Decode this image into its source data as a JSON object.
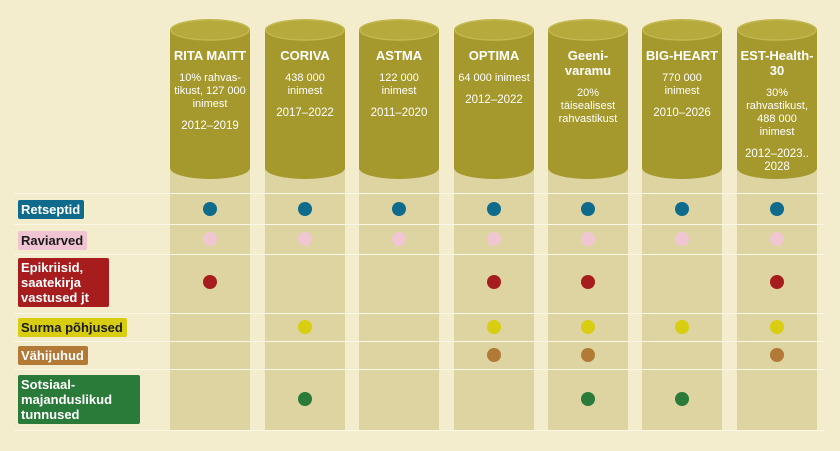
{
  "colors": {
    "background": "#f3eccd",
    "column_band": "#ddd4a2",
    "cylinder": "#a5982c",
    "cylinder_top": "#b7aa3c"
  },
  "databases": [
    {
      "name": "RITA MAITT",
      "population": "10% rahvas-tikust, 127 000 inimest",
      "years": "2012–2019"
    },
    {
      "name": "CORIVA",
      "population": "438 000 inimest",
      "years": "2017–2022"
    },
    {
      "name": "ASTMA",
      "population": "122 000 inimest",
      "years": "2011–2020"
    },
    {
      "name": "OPTIMA",
      "population": "64 000 inimest",
      "years": "2012–2022"
    },
    {
      "name": "Geeni-varamu",
      "population": "20% täisealisest rahvastikust",
      "years": ""
    },
    {
      "name": "BIG-HEART",
      "population": "770 000 inimest",
      "years": "2010–2026"
    },
    {
      "name": "EST-Health-30",
      "population": "30% rahvastikust, 488 000 inimest",
      "years": "2012–2023.. 2028"
    }
  ],
  "data_types": [
    {
      "label": "Retseptid",
      "bg": "#0f6b8c",
      "fg": "#ffffff",
      "dot": "#0f6b8c",
      "present": [
        1,
        1,
        1,
        1,
        1,
        1,
        1
      ]
    },
    {
      "label": "Raviarved",
      "bg": "#f0c4d2",
      "fg": "#1a1a1a",
      "dot": "#f1c6d3",
      "present": [
        1,
        1,
        1,
        1,
        1,
        1,
        1
      ]
    },
    {
      "label": "Epikriisid, saatekirja vastused jt",
      "bg": "#a71d1d",
      "fg": "#ffffff",
      "dot": "#a71d1d",
      "present": [
        1,
        0,
        0,
        1,
        1,
        0,
        1
      ]
    },
    {
      "label": "Surma põhjused",
      "bg": "#d8cd10",
      "fg": "#1a1a1a",
      "dot": "#d8cd10",
      "present": [
        0,
        1,
        0,
        1,
        1,
        1,
        1
      ]
    },
    {
      "label": "Vähijuhud",
      "bg": "#b27a36",
      "fg": "#ffffff",
      "dot": "#b27a36",
      "present": [
        0,
        0,
        0,
        1,
        1,
        0,
        1
      ]
    },
    {
      "label": "Sotsiaal-majanduslikud tunnused",
      "bg": "#2a7a3a",
      "fg": "#ffffff",
      "dot": "#2a7a3a",
      "present": [
        0,
        1,
        0,
        0,
        1,
        1,
        0
      ]
    }
  ]
}
